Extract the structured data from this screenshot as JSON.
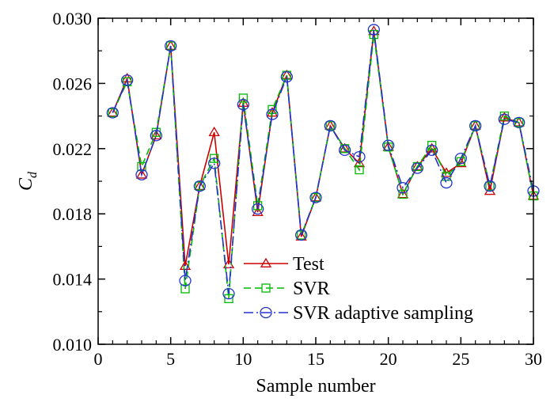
{
  "chart_data": {
    "type": "line",
    "title": "",
    "xlabel": "Sample number",
    "ylabel_main": "C",
    "ylabel_sub": "d",
    "xlim": [
      0,
      30
    ],
    "ylim": [
      0.01,
      0.03
    ],
    "x_ticks": [
      0,
      5,
      10,
      15,
      20,
      25,
      30
    ],
    "x_tick_labels": [
      "0",
      "5",
      "10",
      "15",
      "20",
      "25",
      "30"
    ],
    "y_ticks": [
      0.01,
      0.014,
      0.018,
      0.022,
      0.026,
      0.03
    ],
    "y_tick_labels": [
      "0.010",
      "0.014",
      "0.018",
      "0.022",
      "0.026",
      "0.030"
    ],
    "grid": false,
    "legend_position": "bottom-center",
    "x": [
      1,
      2,
      3,
      4,
      5,
      6,
      7,
      8,
      9,
      10,
      11,
      12,
      13,
      14,
      15,
      16,
      17,
      18,
      19,
      20,
      21,
      22,
      23,
      24,
      25,
      26,
      27,
      28,
      29,
      30
    ],
    "series": [
      {
        "name": "Test",
        "color": "#cc0000",
        "marker": "triangle",
        "dash": "solid",
        "values": [
          0.0242,
          0.0263,
          0.0204,
          0.0228,
          0.0283,
          0.0148,
          0.0197,
          0.023,
          0.0149,
          0.0248,
          0.0181,
          0.0242,
          0.0265,
          0.0166,
          0.019,
          0.0234,
          0.022,
          0.0211,
          0.0292,
          0.0221,
          0.0192,
          0.0209,
          0.022,
          0.0205,
          0.0211,
          0.0234,
          0.0194,
          0.0239,
          0.0236,
          0.0191
        ]
      },
      {
        "name": "SVR",
        "color": "#00bb00",
        "marker": "square",
        "dash": "dashed",
        "values": [
          0.0242,
          0.0261,
          0.0209,
          0.023,
          0.0283,
          0.0134,
          0.0197,
          0.0214,
          0.0128,
          0.0251,
          0.0185,
          0.0244,
          0.0265,
          0.0167,
          0.019,
          0.0234,
          0.022,
          0.0207,
          0.029,
          0.0221,
          0.0192,
          0.0209,
          0.0222,
          0.0203,
          0.0212,
          0.0234,
          0.0197,
          0.024,
          0.0236,
          0.0191
        ]
      },
      {
        "name": "SVR adaptive sampling",
        "color": "#2233cc",
        "marker": "circle",
        "dash": "dashdot",
        "values": [
          0.0242,
          0.0262,
          0.0204,
          0.0228,
          0.0283,
          0.0139,
          0.0197,
          0.0211,
          0.0131,
          0.0247,
          0.0183,
          0.0241,
          0.0264,
          0.0167,
          0.019,
          0.0234,
          0.0219,
          0.0215,
          0.0293,
          0.0222,
          0.0196,
          0.0208,
          0.0219,
          0.0199,
          0.0214,
          0.0234,
          0.0197,
          0.0238,
          0.0236,
          0.0194
        ]
      }
    ]
  }
}
